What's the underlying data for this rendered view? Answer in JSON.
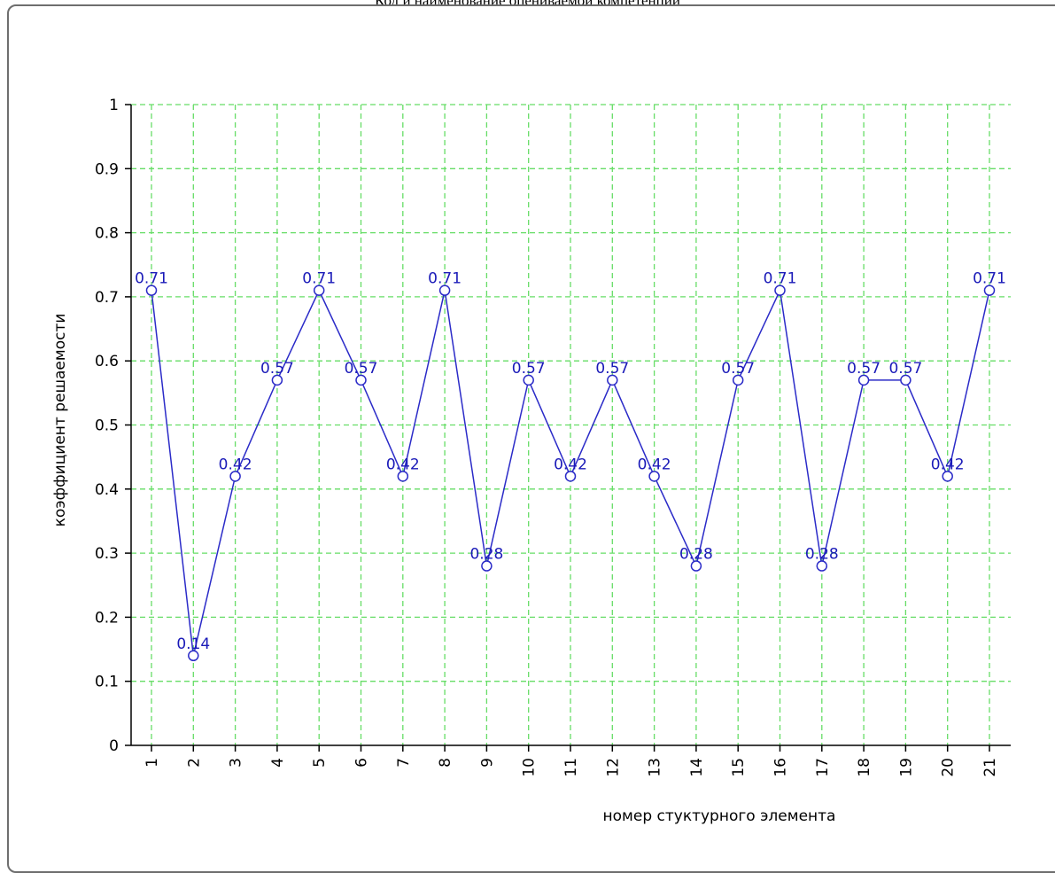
{
  "page": {
    "title": "Код и наименование оцениваемой компетенции"
  },
  "colors": {
    "series": "#2b2bc8",
    "label": "#1a1ab8",
    "grid": "#66dd66",
    "axis": "#000000",
    "frame": "#6e6e6e"
  },
  "chart_data": {
    "type": "line",
    "title": "",
    "xlabel": "номер стуктурного элемента",
    "ylabel": "коэффициент решаемости",
    "categories": [
      "1",
      "2",
      "3",
      "4",
      "5",
      "6",
      "7",
      "8",
      "9",
      "10",
      "11",
      "12",
      "13",
      "14",
      "15",
      "16",
      "17",
      "18",
      "19",
      "20",
      "21"
    ],
    "series": [
      {
        "values": [
          0.71,
          0.14,
          0.42,
          0.57,
          0.71,
          0.57,
          0.42,
          0.71,
          0.28,
          0.57,
          0.42,
          0.57,
          0.42,
          0.28,
          0.57,
          0.71,
          0.28,
          0.57,
          0.57,
          0.42,
          0.71
        ],
        "labels": [
          "0.71",
          "0.14",
          "0.42",
          "0.57",
          "0.71",
          "0.57",
          "0.42",
          "0.71",
          "0.28",
          "0.57",
          "0.42",
          "0.57",
          "0.42",
          "0.28",
          "0.57",
          "0.71",
          "0.28",
          "0.57",
          "0.57",
          "0.42",
          "0.71"
        ]
      }
    ],
    "ylim": [
      0,
      1
    ],
    "yticks": [
      0,
      0.1,
      0.2,
      0.3,
      0.4,
      0.5,
      0.6,
      0.7,
      0.8,
      0.9,
      1
    ],
    "ytick_labels": [
      "0",
      "0.1",
      "0.2",
      "0.3",
      "0.4",
      "0.5",
      "0.6",
      "0.7",
      "0.8",
      "0.9",
      "1"
    ],
    "grid": true,
    "grid_style": "dashed",
    "marker": "circle-open",
    "legend": false
  }
}
